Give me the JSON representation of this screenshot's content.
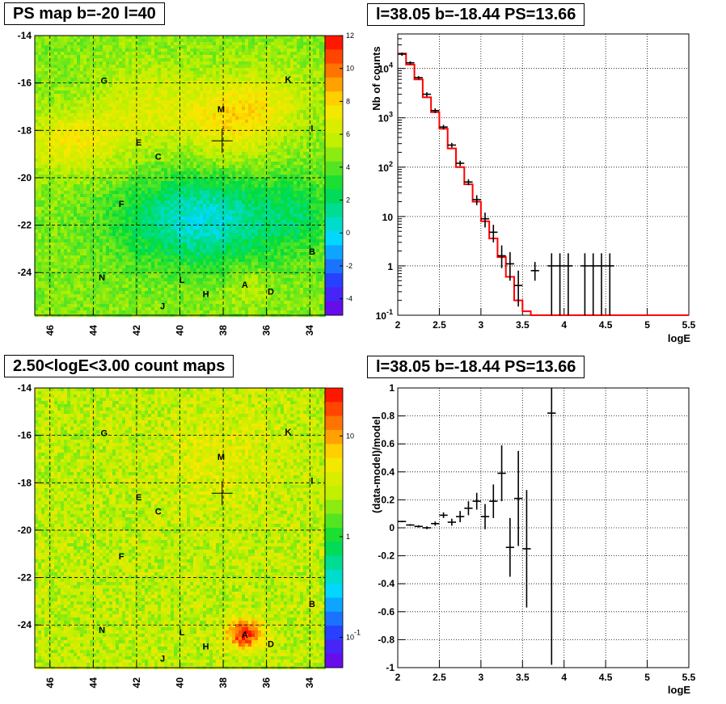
{
  "panels": {
    "tl_title": "PS map b=-20 l=40",
    "tr_title": "l=38.05 b=-18.44 PS=13.66",
    "bl_title": "2.50<logE<3.00 count maps",
    "br_title": "l=38.05 b=-18.44 PS=13.66"
  },
  "colors": {
    "data": "#000000",
    "model": "#ff0000",
    "grid": "#000000"
  },
  "chart_data": [
    {
      "id": "ps-map",
      "type": "heatmap",
      "title": "PS map b=-20 l=40",
      "xlim": [
        46.7,
        33.3
      ],
      "ylim": [
        -25.8,
        -14
      ],
      "x_ticks": [
        46,
        44,
        42,
        40,
        38,
        36,
        34
      ],
      "y_ticks": [
        -14,
        -16,
        -18,
        -20,
        -22,
        -24
      ],
      "colorbar_ticks": [
        12,
        10,
        8,
        6,
        4,
        2,
        0,
        -2,
        -4
      ],
      "colorbar_range": [
        -5,
        12
      ],
      "marker": {
        "l": 38.05,
        "b": -18.44
      },
      "sources": [
        {
          "name": "G",
          "l": 43.5,
          "b": -15.9
        },
        {
          "name": "K",
          "l": 35.0,
          "b": -15.85
        },
        {
          "name": "M",
          "l": 38.1,
          "b": -17.1
        },
        {
          "name": "I",
          "l": 33.9,
          "b": -17.9
        },
        {
          "name": "E",
          "l": 41.9,
          "b": -18.5
        },
        {
          "name": "C",
          "l": 41.0,
          "b": -19.1
        },
        {
          "name": "F",
          "l": 42.7,
          "b": -21.1
        },
        {
          "name": "B",
          "l": 33.9,
          "b": -23.1
        },
        {
          "name": "N",
          "l": 43.6,
          "b": -24.2
        },
        {
          "name": "L",
          "l": 39.9,
          "b": -24.3
        },
        {
          "name": "A",
          "l": 37.0,
          "b": -24.5
        },
        {
          "name": "D",
          "l": 35.8,
          "b": -24.8
        },
        {
          "name": "H",
          "l": 38.8,
          "b": -24.9
        },
        {
          "name": "J",
          "l": 40.8,
          "b": -25.4
        }
      ]
    },
    {
      "id": "spectrum",
      "type": "line",
      "title": "l=38.05 b=-18.44 PS=13.66",
      "xlabel": "logE",
      "ylabel": "Nb of counts",
      "xlim": [
        2,
        5.5
      ],
      "ylim": [
        0.1,
        50000
      ],
      "yscale": "log",
      "x_ticks": [
        2,
        2.5,
        3,
        3.5,
        4,
        4.5,
        5,
        5.5
      ],
      "y_ticks": [
        {
          "v": 10000,
          "label": "10",
          "exp": "4"
        },
        {
          "v": 1000,
          "label": "10",
          "exp": "3"
        },
        {
          "v": 100,
          "label": "10",
          "exp": "2"
        },
        {
          "v": 10,
          "label": "10",
          "exp": ""
        },
        {
          "v": 1,
          "label": "1",
          "exp": ""
        },
        {
          "v": 0.1,
          "label": "10",
          "exp": "-1"
        }
      ],
      "grid": true,
      "bin_edges": [
        2.0,
        2.1,
        2.2,
        2.3,
        2.4,
        2.5,
        2.6,
        2.7,
        2.8,
        2.9,
        3.0,
        3.1,
        3.2,
        3.3,
        3.4,
        3.5,
        3.6,
        3.7,
        3.8,
        3.9,
        4.0,
        4.1,
        4.2,
        5.5
      ],
      "model": [
        20000,
        12000,
        6000,
        2600,
        1300,
        600,
        240,
        100,
        45,
        20,
        8,
        3.6,
        1.5,
        0.6,
        0.2,
        0.12,
        0.1,
        0.1,
        0.1,
        0.1,
        0.1,
        0.1,
        0.1
      ],
      "series": [
        {
          "x": 2.05,
          "y": 19500,
          "lo": 18000,
          "hi": 21000
        },
        {
          "x": 2.15,
          "y": 13000,
          "lo": 12000,
          "hi": 14000
        },
        {
          "x": 2.25,
          "y": 6500,
          "lo": 6000,
          "hi": 7000
        },
        {
          "x": 2.35,
          "y": 3000,
          "lo": 2700,
          "hi": 3300
        },
        {
          "x": 2.45,
          "y": 1400,
          "lo": 1250,
          "hi": 1550
        },
        {
          "x": 2.55,
          "y": 650,
          "lo": 580,
          "hi": 720
        },
        {
          "x": 2.65,
          "y": 280,
          "lo": 250,
          "hi": 310
        },
        {
          "x": 2.75,
          "y": 120,
          "lo": 105,
          "hi": 135
        },
        {
          "x": 2.85,
          "y": 50,
          "lo": 43,
          "hi": 57
        },
        {
          "x": 2.95,
          "y": 22,
          "lo": 17,
          "hi": 27
        },
        {
          "x": 3.05,
          "y": 9,
          "lo": 6,
          "hi": 12
        },
        {
          "x": 3.15,
          "y": 4.8,
          "lo": 3,
          "hi": 6.8
        },
        {
          "x": 3.25,
          "y": 1.6,
          "lo": 0.9,
          "hi": 2.6
        },
        {
          "x": 3.35,
          "y": 1.1,
          "lo": 0.5,
          "hi": 1.9
        },
        {
          "x": 3.45,
          "y": 0.4,
          "lo": 0.15,
          "hi": 0.8
        },
        {
          "x": 3.65,
          "y": 0.8,
          "lo": 0.5,
          "hi": 1.2
        },
        {
          "x": 3.85,
          "y": 1,
          "lo": 0.1,
          "hi": 1.8
        },
        {
          "x": 3.95,
          "y": 1,
          "lo": 0.1,
          "hi": 1.8
        },
        {
          "x": 4.05,
          "y": 1,
          "lo": 0.1,
          "hi": 1.8
        },
        {
          "x": 4.25,
          "y": 1,
          "lo": 0.1,
          "hi": 1.8
        },
        {
          "x": 4.35,
          "y": 1,
          "lo": 0.1,
          "hi": 1.8
        },
        {
          "x": 4.45,
          "y": 1,
          "lo": 0.1,
          "hi": 1.8
        },
        {
          "x": 4.55,
          "y": 1,
          "lo": 0.1,
          "hi": 1.8
        }
      ]
    },
    {
      "id": "count-map",
      "type": "heatmap",
      "title": "2.50<logE<3.00 count maps",
      "xlim": [
        46.7,
        33.3
      ],
      "ylim": [
        -25.8,
        -14
      ],
      "x_ticks": [
        46,
        44,
        42,
        40,
        38,
        36,
        34
      ],
      "y_ticks": [
        -14,
        -16,
        -18,
        -20,
        -22,
        -24
      ],
      "colorbar_ticks": [
        {
          "v": 10,
          "label": "10",
          "exp": ""
        },
        {
          "v": 1,
          "label": "1",
          "exp": ""
        },
        {
          "v": 0.1,
          "label": "10",
          "exp": "-1"
        }
      ],
      "colorbar_scale": "log",
      "colorbar_range": [
        0.05,
        30
      ],
      "marker": {
        "l": 38.05,
        "b": -18.44
      },
      "sources": [
        {
          "name": "G",
          "l": 43.5,
          "b": -15.9
        },
        {
          "name": "K",
          "l": 35.0,
          "b": -15.85
        },
        {
          "name": "M",
          "l": 38.1,
          "b": -16.9
        },
        {
          "name": "I",
          "l": 33.9,
          "b": -17.9
        },
        {
          "name": "E",
          "l": 41.9,
          "b": -18.6
        },
        {
          "name": "C",
          "l": 41.0,
          "b": -19.2
        },
        {
          "name": "F",
          "l": 42.7,
          "b": -21.1
        },
        {
          "name": "B",
          "l": 33.9,
          "b": -23.1
        },
        {
          "name": "N",
          "l": 43.6,
          "b": -24.2
        },
        {
          "name": "L",
          "l": 39.9,
          "b": -24.3
        },
        {
          "name": "A",
          "l": 37.0,
          "b": -24.4
        },
        {
          "name": "D",
          "l": 35.8,
          "b": -24.8
        },
        {
          "name": "H",
          "l": 38.8,
          "b": -24.9
        },
        {
          "name": "J",
          "l": 40.8,
          "b": -25.4
        }
      ]
    },
    {
      "id": "residuals",
      "type": "scatter",
      "title": "l=38.05 b=-18.44 PS=13.66",
      "xlabel": "logE",
      "ylabel": "(data-model)/model",
      "xlim": [
        2,
        5.5
      ],
      "ylim": [
        -1,
        1
      ],
      "x_ticks": [
        2,
        2.5,
        3,
        3.5,
        4,
        4.5,
        5,
        5.5
      ],
      "y_ticks": [
        1,
        0.8,
        0.6,
        0.4,
        0.2,
        0,
        -0.2,
        -0.4,
        -0.6,
        -0.8,
        -1
      ],
      "grid": true,
      "series": [
        {
          "x": 2.05,
          "y": 0.045,
          "e": 0.005
        },
        {
          "x": 2.15,
          "y": 0.02,
          "e": 0.006
        },
        {
          "x": 2.25,
          "y": 0.01,
          "e": 0.008
        },
        {
          "x": 2.35,
          "y": 0.0,
          "e": 0.01
        },
        {
          "x": 2.45,
          "y": 0.03,
          "e": 0.015
        },
        {
          "x": 2.55,
          "y": 0.09,
          "e": 0.02
        },
        {
          "x": 2.65,
          "y": 0.04,
          "e": 0.025
        },
        {
          "x": 2.75,
          "y": 0.08,
          "e": 0.04
        },
        {
          "x": 2.85,
          "y": 0.14,
          "e": 0.05
        },
        {
          "x": 2.95,
          "y": 0.19,
          "e": 0.06
        },
        {
          "x": 3.05,
          "y": 0.08,
          "e": 0.09
        },
        {
          "x": 3.15,
          "y": 0.19,
          "e": 0.12
        },
        {
          "x": 3.25,
          "y": 0.39,
          "e": 0.2
        },
        {
          "x": 3.35,
          "y": -0.14,
          "e": 0.21
        },
        {
          "x": 3.45,
          "y": 0.21,
          "e": 0.34
        },
        {
          "x": 3.55,
          "y": -0.15,
          "e": 0.42
        },
        {
          "x": 3.85,
          "y": 0.82,
          "e": 1.8
        }
      ]
    }
  ]
}
